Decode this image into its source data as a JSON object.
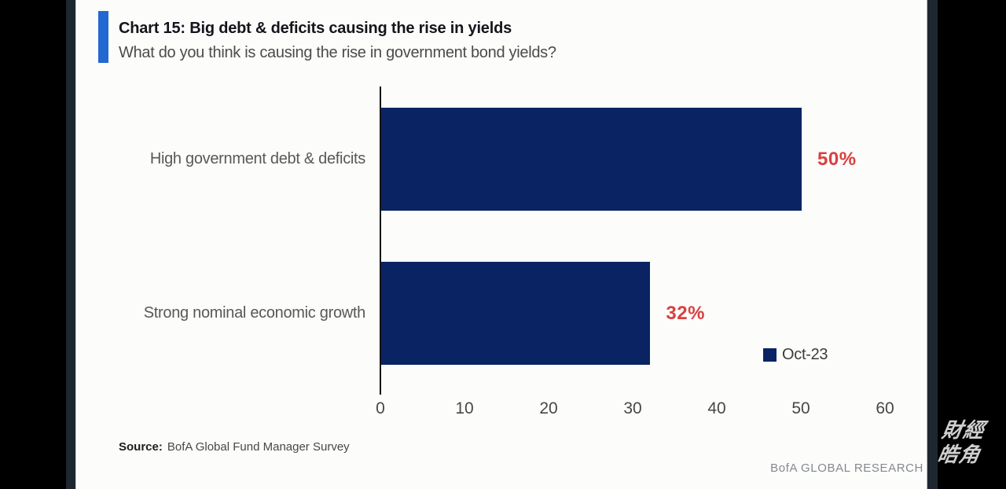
{
  "chart_data": {
    "type": "bar",
    "orientation": "horizontal",
    "title": "Chart 15: Big debt & deficits causing the rise in yields",
    "subtitle": "What do you think is causing the rise in government bond yields?",
    "categories": [
      "High government debt & deficits",
      "Strong nominal economic growth"
    ],
    "series": [
      {
        "name": "Oct-23",
        "values": [
          50,
          32
        ]
      }
    ],
    "value_labels": [
      "50%",
      "32%"
    ],
    "xlim": [
      0,
      60
    ],
    "xticks": [
      0,
      10,
      20,
      30,
      40,
      50,
      60
    ],
    "grid": false,
    "legend_position": "right-middle",
    "bar_color": "#0a2463",
    "value_label_color": "#d84040",
    "accent_color": "#2268d1"
  },
  "footer": {
    "source_label": "Source:",
    "source_text": "BofA Global Fund Manager Survey",
    "brand": "BofA GLOBAL RESEARCH"
  },
  "watermark": {
    "line1": "財經",
    "line2": "皓角"
  }
}
